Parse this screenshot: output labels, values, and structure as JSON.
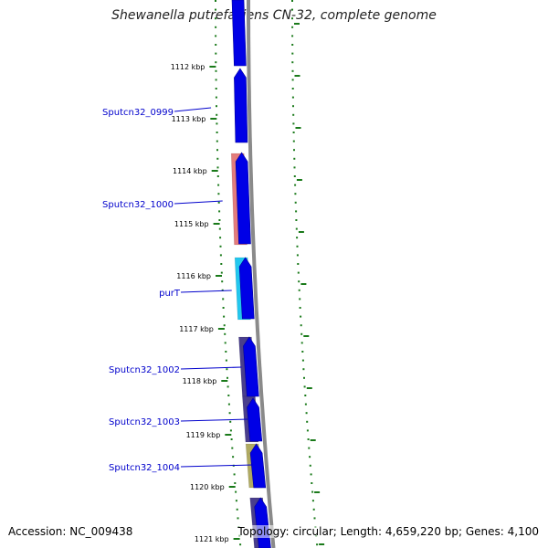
{
  "title": "Shewanella putrefaciens CN-32, complete genome",
  "footer": {
    "accession": "Accession: NC_009438",
    "summary": "Topology: circular; Length: 4,659,220 bp; Genes: 4,100"
  },
  "colors": {
    "backbone": "#8a8a8a",
    "cds_forward": "#0000e6",
    "ticks": "#1a7a1a",
    "label_text": "#0000cc",
    "gene_tracks": {
      "Sputcn32_1000": "#e37c7c",
      "purT": "#22c7ee",
      "Sputcn32_1002": "#4a3f8c",
      "Sputcn32_1003": "#4a3f8c",
      "Sputcn32_1004": "#b0aa62",
      "other": "#4a3f8c"
    }
  },
  "kbp_labels": [
    "1112 kbp",
    "1113 kbp",
    "1114 kbp",
    "1115 kbp",
    "1116 kbp",
    "1117 kbp",
    "1118 kbp",
    "1119 kbp",
    "1120 kbp",
    "1121 kbp"
  ],
  "gene_labels": [
    {
      "text": "Sputcn32_0999"
    },
    {
      "text": "Sputcn32_1000"
    },
    {
      "text": "purT"
    },
    {
      "text": "Sputcn32_1002"
    },
    {
      "text": "Sputcn32_1003"
    },
    {
      "text": "Sputcn32_1004"
    }
  ]
}
